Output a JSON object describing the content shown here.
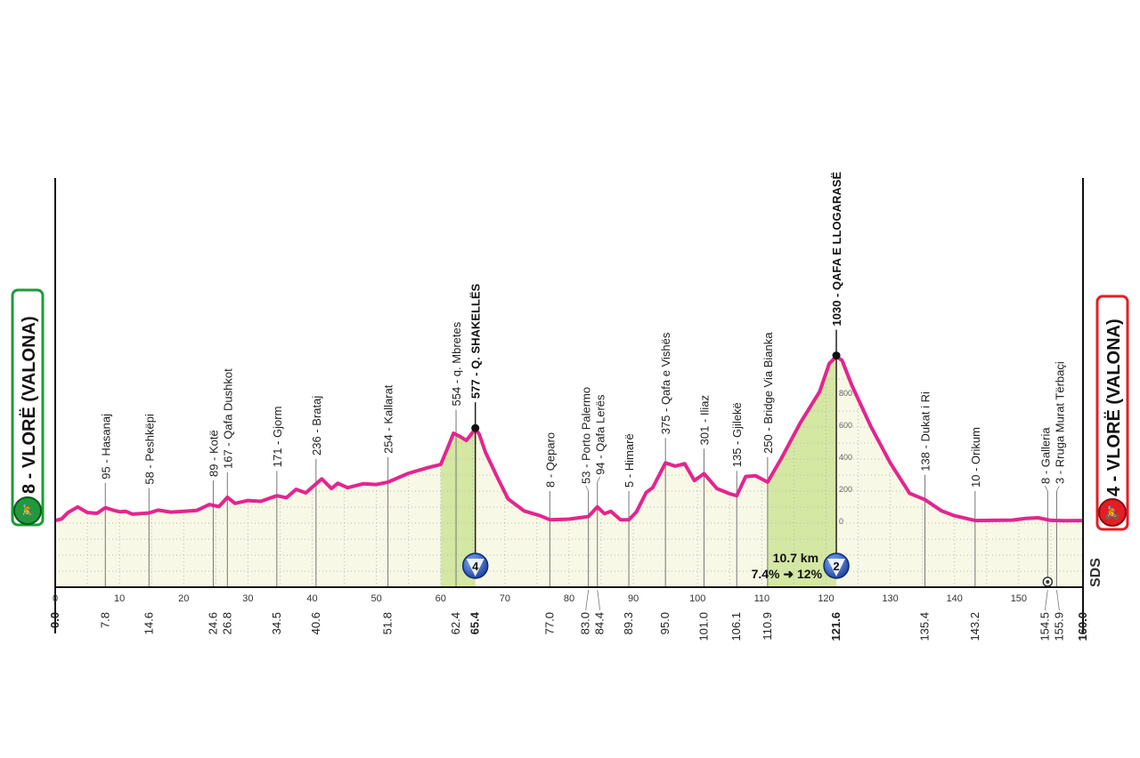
{
  "chart_data": {
    "type": "area",
    "title": "",
    "xlabel": "",
    "ylabel": "",
    "xlim": [
      0,
      160
    ],
    "x_ticks": [
      0,
      10,
      20,
      30,
      40,
      50,
      60,
      70,
      80,
      90,
      100,
      110,
      120,
      130,
      140,
      150
    ],
    "elevation_ticks": [
      0,
      200,
      400,
      600,
      800
    ],
    "colors": {
      "line": "#e3258f",
      "area": "#f7f8e6",
      "climb": "#d4e7a3",
      "start": "#1f9a3a",
      "finish": "#e31e24",
      "marker": "#1f3f9a"
    },
    "start_label": "8 - VLORË (VALONA)",
    "finish_label": "4 - VLORË (VALONA)",
    "watermark": "SDS",
    "profile": [
      [
        0,
        5
      ],
      [
        1,
        15
      ],
      [
        2,
        55
      ],
      [
        3.5,
        90
      ],
      [
        5,
        55
      ],
      [
        6.5,
        50
      ],
      [
        7.8,
        85
      ],
      [
        9,
        70
      ],
      [
        10,
        60
      ],
      [
        11,
        62
      ],
      [
        12,
        45
      ],
      [
        14.6,
        52
      ],
      [
        16,
        70
      ],
      [
        18,
        58
      ],
      [
        20,
        62
      ],
      [
        22,
        68
      ],
      [
        24,
        105
      ],
      [
        25.5,
        92
      ],
      [
        26.8,
        150
      ],
      [
        28,
        112
      ],
      [
        30,
        130
      ],
      [
        32,
        125
      ],
      [
        34.5,
        160
      ],
      [
        36,
        148
      ],
      [
        37.5,
        200
      ],
      [
        39,
        178
      ],
      [
        41.5,
        265
      ],
      [
        43,
        205
      ],
      [
        44,
        238
      ],
      [
        45.5,
        210
      ],
      [
        48,
        235
      ],
      [
        50,
        230
      ],
      [
        51.8,
        245
      ],
      [
        55,
        300
      ],
      [
        58,
        335
      ],
      [
        60,
        355
      ],
      [
        61,
        450
      ],
      [
        62,
        550
      ],
      [
        63,
        530
      ],
      [
        64,
        505
      ],
      [
        65.4,
        577
      ],
      [
        66,
        545
      ],
      [
        67,
        430
      ],
      [
        69,
        260
      ],
      [
        70.5,
        140
      ],
      [
        73,
        65
      ],
      [
        75.5,
        35
      ],
      [
        77,
        10
      ],
      [
        80,
        14
      ],
      [
        83,
        30
      ],
      [
        84.4,
        90
      ],
      [
        85.5,
        48
      ],
      [
        86.5,
        62
      ],
      [
        88,
        10
      ],
      [
        89.3,
        10
      ],
      [
        90.5,
        60
      ],
      [
        92,
        180
      ],
      [
        93,
        210
      ],
      [
        95,
        365
      ],
      [
        96.5,
        345
      ],
      [
        98,
        360
      ],
      [
        99.5,
        255
      ],
      [
        101,
        298
      ],
      [
        103,
        205
      ],
      [
        105,
        172
      ],
      [
        106.1,
        160
      ],
      [
        107.5,
        280
      ],
      [
        109,
        285
      ],
      [
        110.9,
        245
      ],
      [
        113,
        390
      ],
      [
        116,
        615
      ],
      [
        119,
        810
      ],
      [
        120.5,
        985
      ],
      [
        121.6,
        1030
      ],
      [
        122.5,
        1005
      ],
      [
        124,
        850
      ],
      [
        127,
        590
      ],
      [
        130,
        365
      ],
      [
        133,
        175
      ],
      [
        135.4,
        135
      ],
      [
        138,
        65
      ],
      [
        140,
        35
      ],
      [
        143.2,
        5
      ],
      [
        146,
        6
      ],
      [
        149,
        8
      ],
      [
        151,
        18
      ],
      [
        153,
        22
      ],
      [
        155,
        6
      ],
      [
        157,
        4
      ],
      [
        160,
        5
      ]
    ],
    "climbs": [
      {
        "from": 60.0,
        "to": 65.4,
        "category": "4"
      },
      {
        "from": 110.9,
        "to": 121.6,
        "category": "2",
        "length": "10.7 km",
        "gradient": "7.4%",
        "max_gradient": "12%"
      }
    ],
    "waypoints": [
      {
        "km": 0.0,
        "km_label": "0.0",
        "label": "",
        "bold": true
      },
      {
        "km": 7.8,
        "km_label": "7.8",
        "label": "95 - Hasanaj"
      },
      {
        "km": 14.6,
        "km_label": "14.6",
        "label": "58 - Peshkëpi"
      },
      {
        "km": 24.6,
        "km_label": "24.6",
        "label": "89 - Kotë"
      },
      {
        "km": 26.8,
        "km_label": "26.8",
        "label": "167 - Qafa Dushkot"
      },
      {
        "km": 34.5,
        "km_label": "34.5",
        "label": "171 - Gjorm"
      },
      {
        "km": 40.6,
        "km_label": "40.6",
        "label": "236 - Brataj"
      },
      {
        "km": 51.8,
        "km_label": "51.8",
        "label": "254 - Kallarat"
      },
      {
        "km": 62.4,
        "km_label": "62.4",
        "label": "554 - q. Mbretes"
      },
      {
        "km": 65.4,
        "km_label": "65.4",
        "label": "577 - Q. SHAKELLËS",
        "bold": true,
        "summit": true
      },
      {
        "km": 77.0,
        "km_label": "77.0",
        "label": "8 - Qeparo"
      },
      {
        "km": 83.0,
        "km_label": "83.0",
        "label": "53 - Porto Palermo"
      },
      {
        "km": 84.4,
        "km_label": "84.4",
        "label": "94 - Qafa Lerës"
      },
      {
        "km": 89.3,
        "km_label": "89.3",
        "label": "5 - Himarë"
      },
      {
        "km": 95.0,
        "km_label": "95.0",
        "label": "375 - Qafa e Vishës"
      },
      {
        "km": 101.0,
        "km_label": "101.0",
        "label": "301 - Iliaz"
      },
      {
        "km": 106.1,
        "km_label": "106.1",
        "label": "135 - Gjilekë"
      },
      {
        "km": 110.9,
        "km_label": "110.9",
        "label": "250 - Bridge Via Bianka"
      },
      {
        "km": 121.6,
        "km_label": "121.6",
        "label": "1030 - QAFA E LLOGARASË",
        "bold": true,
        "summit": true
      },
      {
        "km": 135.4,
        "km_label": "135.4",
        "label": "138 - Dukat i Ri"
      },
      {
        "km": 143.2,
        "km_label": "143.2",
        "label": "10 - Orikum"
      },
      {
        "km": 154.5,
        "km_label": "154.5",
        "label": "8 - Galleria",
        "icon": "tunnel-icon"
      },
      {
        "km": 155.9,
        "km_label": "155.9",
        "label": "3 - Rruga Murat Tërbaçi"
      },
      {
        "km": 160.0,
        "km_label": "160.0",
        "label": "",
        "bold": true
      }
    ]
  }
}
